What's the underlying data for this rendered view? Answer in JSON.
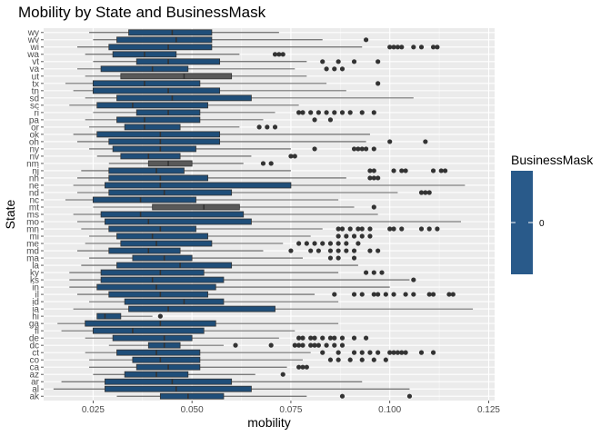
{
  "chart_data": {
    "type": "boxplot",
    "orientation": "horizontal",
    "title": "Mobility by State and BusinessMask",
    "xlabel": "mobility",
    "ylabel": "State",
    "xlim": [
      0.0125,
      0.1265
    ],
    "x_ticks": [
      0.025,
      0.05,
      0.075,
      0.1,
      0.125
    ],
    "x_tick_labels": [
      "0.025",
      "0.050",
      "0.075",
      "0.100",
      "0.125"
    ],
    "grid": true,
    "legend": {
      "title": "BusinessMask",
      "position": "right",
      "type": "colorbar",
      "labels": [
        "0"
      ]
    },
    "colors": {
      "box_fill_default": "#1f4e79",
      "box_fill_gray": "#595959",
      "panel_bg": "#ebebeb",
      "grid": "#ffffff",
      "outlier": "#333333",
      "legend_bar": "#295a8a"
    },
    "series": [
      {
        "state": "wy",
        "min": 0.024,
        "q1": 0.034,
        "median": 0.045,
        "q3": 0.055,
        "max": 0.072,
        "outliers": [],
        "fill": "blue"
      },
      {
        "state": "wv",
        "min": 0.025,
        "q1": 0.031,
        "median": 0.046,
        "q3": 0.055,
        "max": 0.083,
        "outliers": [
          0.094
        ],
        "fill": "blue"
      },
      {
        "state": "wi",
        "min": 0.021,
        "q1": 0.029,
        "median": 0.044,
        "q3": 0.055,
        "max": 0.093,
        "outliers": [
          0.1,
          0.101,
          0.102,
          0.103,
          0.106,
          0.108,
          0.111,
          0.112
        ],
        "fill": "blue"
      },
      {
        "state": "wa",
        "min": 0.023,
        "q1": 0.03,
        "median": 0.038,
        "q3": 0.046,
        "max": 0.062,
        "outliers": [
          0.071,
          0.072,
          0.073
        ],
        "fill": "blue"
      },
      {
        "state": "vt",
        "min": 0.025,
        "q1": 0.036,
        "median": 0.044,
        "q3": 0.057,
        "max": 0.079,
        "outliers": [
          0.083,
          0.087,
          0.091,
          0.097
        ],
        "fill": "blue"
      },
      {
        "state": "va",
        "min": 0.021,
        "q1": 0.027,
        "median": 0.04,
        "q3": 0.049,
        "max": 0.076,
        "outliers": [
          0.084,
          0.086,
          0.088
        ],
        "fill": "blue"
      },
      {
        "state": "ut",
        "min": 0.023,
        "q1": 0.032,
        "median": 0.048,
        "q3": 0.06,
        "max": 0.079,
        "outliers": [],
        "fill": "gray"
      },
      {
        "state": "tx",
        "min": 0.018,
        "q1": 0.025,
        "median": 0.038,
        "q3": 0.052,
        "max": 0.084,
        "outliers": [
          0.097
        ],
        "fill": "blue"
      },
      {
        "state": "tn",
        "min": 0.02,
        "q1": 0.025,
        "median": 0.044,
        "q3": 0.057,
        "max": 0.089,
        "outliers": [],
        "fill": "blue"
      },
      {
        "state": "sd",
        "min": 0.023,
        "q1": 0.031,
        "median": 0.045,
        "q3": 0.065,
        "max": 0.106,
        "outliers": [],
        "fill": "blue"
      },
      {
        "state": "sc",
        "min": 0.019,
        "q1": 0.026,
        "median": 0.035,
        "q3": 0.054,
        "max": 0.077,
        "outliers": [],
        "fill": "blue"
      },
      {
        "state": "ri",
        "min": 0.025,
        "q1": 0.036,
        "median": 0.044,
        "q3": 0.052,
        "max": 0.071,
        "outliers": [
          0.077,
          0.078,
          0.08,
          0.082,
          0.084,
          0.086,
          0.088,
          0.09,
          0.093,
          0.096
        ],
        "fill": "blue"
      },
      {
        "state": "pa",
        "min": 0.023,
        "q1": 0.031,
        "median": 0.038,
        "q3": 0.052,
        "max": 0.068,
        "outliers": [
          0.081,
          0.085
        ],
        "fill": "blue"
      },
      {
        "state": "or",
        "min": 0.024,
        "q1": 0.033,
        "median": 0.038,
        "q3": 0.047,
        "max": 0.062,
        "outliers": [
          0.067,
          0.069,
          0.071
        ],
        "fill": "blue"
      },
      {
        "state": "ok",
        "min": 0.02,
        "q1": 0.026,
        "median": 0.042,
        "q3": 0.057,
        "max": 0.095,
        "outliers": [],
        "fill": "blue"
      },
      {
        "state": "oh",
        "min": 0.021,
        "q1": 0.029,
        "median": 0.042,
        "q3": 0.057,
        "max": 0.094,
        "outliers": [
          0.1,
          0.109
        ],
        "fill": "blue"
      },
      {
        "state": "ny",
        "min": 0.024,
        "q1": 0.03,
        "median": 0.042,
        "q3": 0.051,
        "max": 0.075,
        "outliers": [
          0.081,
          0.091,
          0.092,
          0.093,
          0.094,
          0.096
        ],
        "fill": "blue"
      },
      {
        "state": "nv",
        "min": 0.026,
        "q1": 0.032,
        "median": 0.039,
        "q3": 0.047,
        "max": 0.065,
        "outliers": [
          0.075,
          0.076
        ],
        "fill": "blue"
      },
      {
        "state": "nm",
        "min": 0.029,
        "q1": 0.039,
        "median": 0.044,
        "q3": 0.05,
        "max": 0.063,
        "outliers": [
          0.068,
          0.07
        ],
        "fill": "gray"
      },
      {
        "state": "nj",
        "min": 0.022,
        "q1": 0.029,
        "median": 0.041,
        "q3": 0.048,
        "max": 0.075,
        "outliers": [
          0.095,
          0.096,
          0.101,
          0.103,
          0.104,
          0.111,
          0.113,
          0.114
        ],
        "fill": "blue"
      },
      {
        "state": "nh",
        "min": 0.021,
        "q1": 0.029,
        "median": 0.042,
        "q3": 0.054,
        "max": 0.089,
        "outliers": [
          0.095,
          0.096,
          0.097
        ],
        "fill": "blue"
      },
      {
        "state": "ne",
        "min": 0.02,
        "q1": 0.028,
        "median": 0.042,
        "q3": 0.075,
        "max": 0.119,
        "outliers": [],
        "fill": "blue"
      },
      {
        "state": "nd",
        "min": 0.021,
        "q1": 0.029,
        "median": 0.043,
        "q3": 0.06,
        "max": 0.102,
        "outliers": [
          0.108,
          0.109,
          0.11
        ],
        "fill": "blue"
      },
      {
        "state": "nc",
        "min": 0.018,
        "q1": 0.025,
        "median": 0.037,
        "q3": 0.051,
        "max": 0.087,
        "outliers": [],
        "fill": "blue"
      },
      {
        "state": "mt",
        "min": 0.025,
        "q1": 0.04,
        "median": 0.053,
        "q3": 0.062,
        "max": 0.091,
        "outliers": [
          0.096
        ],
        "fill": "gray"
      },
      {
        "state": "ms",
        "min": 0.02,
        "q1": 0.027,
        "median": 0.037,
        "q3": 0.063,
        "max": 0.097,
        "outliers": [],
        "fill": "blue"
      },
      {
        "state": "mo",
        "min": 0.021,
        "q1": 0.028,
        "median": 0.039,
        "q3": 0.065,
        "max": 0.118,
        "outliers": [],
        "fill": "blue"
      },
      {
        "state": "mn",
        "min": 0.022,
        "q1": 0.029,
        "median": 0.042,
        "q3": 0.051,
        "max": 0.083,
        "outliers": [
          0.087,
          0.088,
          0.09,
          0.092,
          0.093,
          0.095,
          0.1,
          0.101,
          0.103,
          0.108,
          0.11,
          0.112
        ],
        "fill": "blue"
      },
      {
        "state": "mi",
        "min": 0.024,
        "q1": 0.031,
        "median": 0.04,
        "q3": 0.054,
        "max": 0.08,
        "outliers": [
          0.087,
          0.089,
          0.091,
          0.093,
          0.095
        ],
        "fill": "blue"
      },
      {
        "state": "me",
        "min": 0.023,
        "q1": 0.032,
        "median": 0.041,
        "q3": 0.055,
        "max": 0.073,
        "outliers": [
          0.077,
          0.079,
          0.081,
          0.083,
          0.085,
          0.087,
          0.089,
          0.092
        ],
        "fill": "blue"
      },
      {
        "state": "md",
        "min": 0.021,
        "q1": 0.029,
        "median": 0.039,
        "q3": 0.047,
        "max": 0.068,
        "outliers": [
          0.075,
          0.08,
          0.082,
          0.085,
          0.087,
          0.089,
          0.091,
          0.095,
          0.097
        ],
        "fill": "blue"
      },
      {
        "state": "ma",
        "min": 0.024,
        "q1": 0.035,
        "median": 0.043,
        "q3": 0.05,
        "max": 0.078,
        "outliers": [
          0.085,
          0.087,
          0.091
        ],
        "fill": "blue"
      },
      {
        "state": "la",
        "min": 0.022,
        "q1": 0.031,
        "median": 0.047,
        "q3": 0.06,
        "max": 0.092,
        "outliers": [],
        "fill": "blue"
      },
      {
        "state": "ky",
        "min": 0.019,
        "q1": 0.027,
        "median": 0.042,
        "q3": 0.053,
        "max": 0.087,
        "outliers": [
          0.094,
          0.096,
          0.098
        ],
        "fill": "blue"
      },
      {
        "state": "ks",
        "min": 0.019,
        "q1": 0.027,
        "median": 0.04,
        "q3": 0.058,
        "max": 0.105,
        "outliers": [
          0.106
        ],
        "fill": "blue"
      },
      {
        "state": "in",
        "min": 0.019,
        "q1": 0.026,
        "median": 0.041,
        "q3": 0.056,
        "max": 0.1,
        "outliers": [],
        "fill": "blue"
      },
      {
        "state": "il",
        "min": 0.021,
        "q1": 0.029,
        "median": 0.042,
        "q3": 0.054,
        "max": 0.081,
        "outliers": [
          0.086,
          0.091,
          0.093,
          0.096,
          0.097,
          0.099,
          0.101,
          0.104,
          0.106,
          0.11,
          0.111,
          0.115,
          0.116
        ],
        "fill": "blue"
      },
      {
        "state": "id",
        "min": 0.024,
        "q1": 0.033,
        "median": 0.048,
        "q3": 0.058,
        "max": 0.087,
        "outliers": [],
        "fill": "blue"
      },
      {
        "state": "ia",
        "min": 0.02,
        "q1": 0.034,
        "median": 0.044,
        "q3": 0.071,
        "max": 0.121,
        "outliers": [],
        "fill": "blue"
      },
      {
        "state": "hi",
        "min": 0.026,
        "q1": 0.026,
        "median": 0.028,
        "q3": 0.032,
        "max": 0.04,
        "outliers": [
          0.042
        ],
        "fill": "blue"
      },
      {
        "state": "ga",
        "min": 0.016,
        "q1": 0.023,
        "median": 0.042,
        "q3": 0.056,
        "max": 0.087,
        "outliers": [],
        "fill": "blue"
      },
      {
        "state": "fl",
        "min": 0.017,
        "q1": 0.025,
        "median": 0.035,
        "q3": 0.053,
        "max": 0.076,
        "outliers": [],
        "fill": "blue"
      },
      {
        "state": "de",
        "min": 0.023,
        "q1": 0.03,
        "median": 0.043,
        "q3": 0.05,
        "max": 0.072,
        "outliers": [
          0.077,
          0.078,
          0.08,
          0.081,
          0.083,
          0.085,
          0.086,
          0.088,
          0.091,
          0.094
        ],
        "fill": "blue"
      },
      {
        "state": "dc",
        "min": 0.029,
        "q1": 0.039,
        "median": 0.043,
        "q3": 0.047,
        "max": 0.058,
        "outliers": [
          0.061,
          0.07,
          0.076,
          0.077,
          0.078,
          0.08,
          0.081,
          0.082,
          0.084,
          0.086,
          0.088
        ],
        "fill": "blue"
      },
      {
        "state": "ct",
        "min": 0.023,
        "q1": 0.031,
        "median": 0.041,
        "q3": 0.052,
        "max": 0.08,
        "outliers": [
          0.083,
          0.087,
          0.091,
          0.093,
          0.095,
          0.097,
          0.1,
          0.101,
          0.102,
          0.103,
          0.104,
          0.108,
          0.111
        ],
        "fill": "blue"
      },
      {
        "state": "co",
        "min": 0.024,
        "q1": 0.035,
        "median": 0.042,
        "q3": 0.052,
        "max": 0.078,
        "outliers": [
          0.085,
          0.087,
          0.09,
          0.093,
          0.096,
          0.099
        ],
        "fill": "blue"
      },
      {
        "state": "ca",
        "min": 0.024,
        "q1": 0.036,
        "median": 0.044,
        "q3": 0.052,
        "max": 0.074,
        "outliers": [
          0.077,
          0.078,
          0.079
        ],
        "fill": "blue"
      },
      {
        "state": "az",
        "min": 0.025,
        "q1": 0.033,
        "median": 0.041,
        "q3": 0.049,
        "max": 0.066,
        "outliers": [
          0.073
        ],
        "fill": "blue"
      },
      {
        "state": "ar",
        "min": 0.017,
        "q1": 0.028,
        "median": 0.045,
        "q3": 0.06,
        "max": 0.093,
        "outliers": [],
        "fill": "blue"
      },
      {
        "state": "al",
        "min": 0.015,
        "q1": 0.028,
        "median": 0.046,
        "q3": 0.065,
        "max": 0.105,
        "outliers": [],
        "fill": "blue"
      },
      {
        "state": "ak",
        "min": 0.031,
        "q1": 0.042,
        "median": 0.049,
        "q3": 0.058,
        "max": 0.079,
        "outliers": [
          0.088,
          0.105
        ],
        "fill": "blue"
      }
    ]
  }
}
